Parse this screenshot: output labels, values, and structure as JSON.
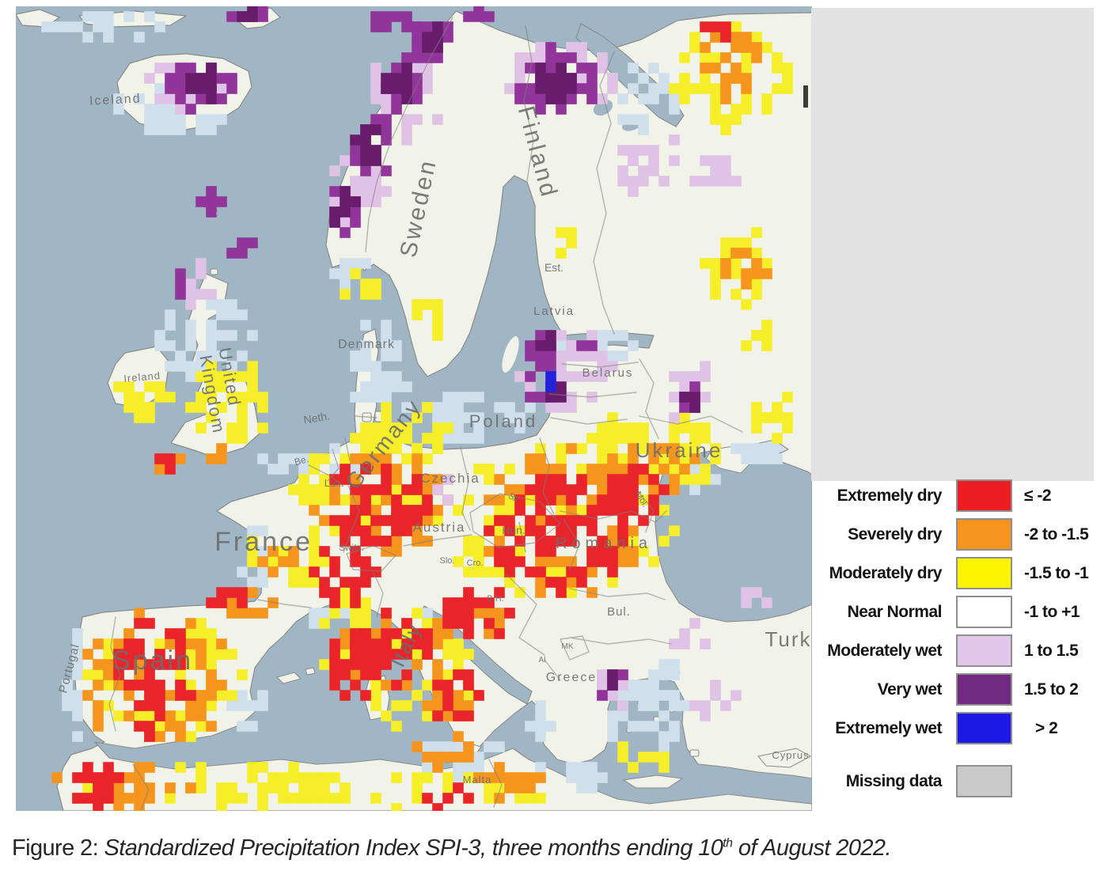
{
  "caption": {
    "prefix": "Figure 2:",
    "body": " Standardized Precipitation Index SPI-3, three months ending 10",
    "sup": "th",
    "tail": " of August 2022."
  },
  "panel": {
    "color": "#e2e2e2"
  },
  "legend": {
    "swatch_border": "#8f8f8f",
    "rows": [
      {
        "label": "Extremely dry",
        "range": "≤ -2",
        "color": "#ee1c23"
      },
      {
        "label": "Severely dry",
        "range": "-2 to -1.5",
        "color": "#f79420"
      },
      {
        "label": "Moderately dry",
        "range": "-1.5 to -1",
        "color": "#fdf402"
      },
      {
        "label": "Near Normal",
        "range": "-1 to +1",
        "color": "#ffffff"
      },
      {
        "label": "Moderately wet",
        "range": "1 to 1.5",
        "color": "#e4c6ea"
      },
      {
        "label": "Very wet",
        "range": "1.5 to 2",
        "color": "#722982"
      },
      {
        "label": "Extremely wet",
        "range": "> 2",
        "color": "#1d1ae8"
      },
      {
        "label": "Missing data",
        "range": "",
        "color": "#c9c9c9"
      }
    ]
  },
  "map": {
    "colors": {
      "sea": "#a0b6c5",
      "land": "#f1f3e9",
      "coast": "#cfdfec",
      "yellow": "#f5ee28",
      "orange": "#f6951e",
      "red": "#e9242a",
      "lavender": "#e0c2e6",
      "purple": "#92359a",
      "darkpurple": "#681d6c",
      "blue": "#2222dd",
      "border": "#7f7f7f",
      "label": "#6d6d6d"
    },
    "labels": [
      [
        "Iceland",
        126,
        123,
        16,
        -3,
        2
      ],
      [
        "Sweden",
        518,
        257,
        30,
        -78,
        3
      ],
      [
        "Finland",
        650,
        187,
        30,
        75,
        3
      ],
      [
        "Est.",
        680,
        335,
        14,
        0,
        0
      ],
      [
        "Latvia",
        680,
        390,
        15,
        0,
        2
      ],
      [
        "Belarus",
        748,
        468,
        15,
        0,
        2
      ],
      [
        "Denmark",
        443,
        432,
        16,
        0,
        1
      ],
      [
        "United",
        263,
        470,
        22,
        80,
        2
      ],
      [
        "Kingdom",
        241,
        492,
        22,
        80,
        2
      ],
      [
        "Ireland",
        160,
        473,
        13,
        -5,
        1
      ],
      [
        "Neth.",
        381,
        525,
        14,
        -10,
        0
      ],
      [
        "Be.",
        362,
        578,
        12,
        -15,
        0
      ],
      [
        "Lux.",
        402,
        607,
        13,
        0,
        0
      ],
      [
        "Germany",
        472,
        559,
        28,
        -52,
        3
      ],
      [
        "Czechia",
        549,
        602,
        17,
        0,
        2
      ],
      [
        "Poland",
        616,
        532,
        22,
        0,
        3
      ],
      [
        "Austria",
        535,
        664,
        17,
        0,
        2
      ],
      [
        "Switz.",
        424,
        688,
        12,
        0,
        0
      ],
      [
        "France",
        313,
        688,
        34,
        0,
        3
      ],
      [
        "Hun.",
        629,
        667,
        14,
        0,
        0
      ],
      [
        "Slo.",
        545,
        704,
        11,
        0,
        0
      ],
      [
        "Cro.",
        580,
        707,
        11,
        0,
        0
      ],
      [
        "B.H.",
        606,
        752,
        11,
        0,
        0
      ],
      [
        "Romania",
        743,
        685,
        20,
        0,
        6
      ],
      [
        "Mol.",
        788,
        625,
        11,
        58,
        0
      ],
      [
        "Sk.",
        628,
        625,
        11,
        36,
        0
      ],
      [
        "Bul.",
        762,
        770,
        15,
        0,
        1
      ],
      [
        "MK",
        697,
        812,
        10,
        0,
        0
      ],
      [
        "Al",
        665,
        829,
        10,
        0,
        0
      ],
      [
        "Greece",
        702,
        853,
        16,
        0,
        2
      ],
      [
        "Ukraine",
        838,
        570,
        26,
        0,
        3
      ],
      [
        "Spain",
        173,
        838,
        34,
        0,
        3
      ],
      [
        "Portugal",
        72,
        838,
        15,
        -75,
        1
      ],
      [
        "Italy",
        501,
        811,
        26,
        -65,
        2
      ],
      [
        "Malta",
        583,
        982,
        13,
        0,
        1
      ],
      [
        "Turk",
        976,
        809,
        26,
        0,
        2
      ],
      [
        "Cyprus",
        979,
        951,
        13,
        0,
        1
      ]
    ],
    "patches": [
      [
        "coast",
        210,
        150,
        60,
        18,
        26
      ],
      [
        "coast",
        110,
        25,
        80,
        14,
        20
      ],
      [
        "coast",
        235,
        420,
        60,
        62,
        40
      ],
      [
        "coast",
        370,
        578,
        70,
        16,
        26
      ],
      [
        "coast",
        455,
        450,
        42,
        52,
        34
      ],
      [
        "coast",
        570,
        522,
        92,
        28,
        48
      ],
      [
        "coast",
        740,
        428,
        60,
        12,
        16
      ],
      [
        "coast",
        300,
        700,
        24,
        40,
        16
      ],
      [
        "coast",
        78,
        860,
        14,
        70,
        18
      ],
      [
        "coast",
        400,
        768,
        40,
        14,
        12
      ],
      [
        "coast",
        530,
        775,
        25,
        14,
        9
      ],
      [
        "coast",
        795,
        895,
        48,
        48,
        38
      ],
      [
        "coast",
        560,
        950,
        55,
        22,
        20
      ],
      [
        "coast",
        855,
        590,
        35,
        25,
        16
      ],
      [
        "coast",
        930,
        568,
        30,
        14,
        10
      ],
      [
        "coast",
        420,
        332,
        35,
        14,
        10
      ],
      [
        "coast",
        790,
        110,
        50,
        40,
        22
      ],
      [
        "coast",
        828,
        843,
        20,
        9,
        7
      ],
      [
        "coast",
        700,
        975,
        50,
        16,
        12
      ],
      [
        "coast",
        300,
        890,
        25,
        25,
        10
      ],
      [
        "coast",
        665,
        900,
        16,
        25,
        9
      ],
      [
        "coast",
        162,
        128,
        40,
        25,
        12
      ],
      [
        "yellow",
        495,
        540,
        60,
        35,
        42
      ],
      [
        "yellow",
        460,
        610,
        110,
        72,
        88
      ],
      [
        "yellow",
        270,
        500,
        50,
        52,
        42
      ],
      [
        "yellow",
        150,
        495,
        42,
        30,
        26
      ],
      [
        "yellow",
        350,
        695,
        55,
        38,
        30
      ],
      [
        "yellow",
        420,
        800,
        40,
        62,
        34
      ],
      [
        "yellow",
        505,
        845,
        75,
        72,
        50
      ],
      [
        "yellow",
        690,
        655,
        138,
        103,
        112
      ],
      [
        "yellow",
        820,
        568,
        75,
        45,
        52
      ],
      [
        "yellow",
        185,
        845,
        95,
        88,
        74
      ],
      [
        "yellow",
        380,
        987,
        318,
        26,
        102
      ],
      [
        "yellow",
        905,
        85,
        75,
        68,
        60
      ],
      [
        "yellow",
        918,
        325,
        46,
        48,
        38
      ],
      [
        "yellow",
        440,
        358,
        24,
        20,
        11
      ],
      [
        "yellow",
        525,
        395,
        18,
        22,
        10
      ],
      [
        "yellow",
        940,
        420,
        28,
        13,
        8
      ],
      [
        "yellow",
        958,
        520,
        30,
        28,
        15
      ],
      [
        "yellow",
        790,
        950,
        40,
        13,
        9
      ],
      [
        "yellow",
        690,
        295,
        15,
        15,
        6
      ],
      [
        "yellow",
        755,
        540,
        25,
        18,
        10
      ],
      [
        "orange",
        462,
        628,
        92,
        62,
        50
      ],
      [
        "orange",
        695,
        655,
        118,
        93,
        70
      ],
      [
        "orange",
        800,
        585,
        55,
        35,
        28
      ],
      [
        "orange",
        190,
        848,
        80,
        83,
        46
      ],
      [
        "orange",
        112,
        858,
        22,
        60,
        20
      ],
      [
        "orange",
        480,
        812,
        65,
        52,
        33
      ],
      [
        "orange",
        555,
        880,
        35,
        45,
        21
      ],
      [
        "orange",
        905,
        72,
        45,
        45,
        26
      ],
      [
        "orange",
        288,
        757,
        38,
        18,
        13
      ],
      [
        "orange",
        330,
        698,
        30,
        16,
        10
      ],
      [
        "orange",
        190,
        575,
        22,
        12,
        8
      ],
      [
        "orange",
        255,
        560,
        12,
        8,
        4
      ],
      [
        "orange",
        140,
        985,
        85,
        28,
        36
      ],
      [
        "orange",
        620,
        985,
        55,
        22,
        17
      ],
      [
        "orange",
        920,
        330,
        26,
        22,
        12
      ],
      [
        "orange",
        575,
        780,
        45,
        30,
        17
      ],
      [
        "orange",
        545,
        945,
        45,
        15,
        11
      ],
      [
        "red",
        460,
        630,
        68,
        50,
        52
      ],
      [
        "red",
        415,
        715,
        35,
        42,
        28
      ],
      [
        "red",
        425,
        835,
        25,
        55,
        23
      ],
      [
        "red",
        478,
        812,
        52,
        42,
        40
      ],
      [
        "red",
        553,
        872,
        30,
        38,
        19
      ],
      [
        "red",
        685,
        665,
        90,
        73,
        85
      ],
      [
        "red",
        785,
        620,
        40,
        35,
        21
      ],
      [
        "red",
        585,
        768,
        45,
        30,
        23
      ],
      [
        "red",
        175,
        848,
        55,
        70,
        52
      ],
      [
        "red",
        262,
        752,
        32,
        18,
        11
      ],
      [
        "red",
        95,
        982,
        38,
        30,
        19
      ],
      [
        "red",
        545,
        995,
        30,
        16,
        8
      ],
      [
        "red",
        890,
        25,
        22,
        14,
        8
      ],
      [
        "red",
        188,
        577,
        12,
        8,
        4
      ],
      [
        "lavender",
        210,
        100,
        55,
        32,
        28
      ],
      [
        "lavender",
        490,
        120,
        45,
        55,
        28
      ],
      [
        "lavender",
        435,
        225,
        35,
        55,
        25
      ],
      [
        "lavender",
        690,
        95,
        70,
        48,
        42
      ],
      [
        "lavender",
        800,
        200,
        42,
        35,
        26
      ],
      [
        "lavender",
        878,
        210,
        32,
        25,
        15
      ],
      [
        "lavender",
        695,
        460,
        60,
        55,
        40
      ],
      [
        "lavender",
        728,
        432,
        16,
        13,
        6
      ],
      [
        "lavender",
        845,
        490,
        25,
        28,
        13
      ],
      [
        "lavender",
        755,
        860,
        32,
        25,
        15
      ],
      [
        "lavender",
        855,
        795,
        22,
        18,
        8
      ],
      [
        "lavender",
        885,
        880,
        28,
        20,
        10
      ],
      [
        "lavender",
        225,
        350,
        25,
        25,
        11
      ],
      [
        "lavender",
        862,
        470,
        25,
        15,
        8
      ],
      [
        "lavender",
        932,
        752,
        22,
        12,
        6
      ],
      [
        "lavender",
        540,
        608,
        8,
        22,
        5
      ],
      [
        "purple",
        232,
        100,
        42,
        28,
        28
      ],
      [
        "purple",
        300,
        12,
        20,
        12,
        10
      ],
      [
        "purple",
        243,
        252,
        15,
        20,
        10
      ],
      [
        "purple",
        288,
        308,
        13,
        15,
        8
      ],
      [
        "purple",
        285,
        12,
        13,
        9,
        6
      ],
      [
        "purple",
        212,
        355,
        15,
        17,
        8
      ],
      [
        "purple",
        530,
        45,
        28,
        25,
        17
      ],
      [
        "purple",
        488,
        100,
        26,
        35,
        21
      ],
      [
        "purple",
        450,
        175,
        24,
        42,
        23
      ],
      [
        "purple",
        418,
        255,
        20,
        38,
        17
      ],
      [
        "purple",
        478,
        22,
        30,
        16,
        11
      ],
      [
        "purple",
        688,
        95,
        52,
        38,
        38
      ],
      [
        "purple",
        668,
        455,
        22,
        45,
        24
      ],
      [
        "purple",
        752,
        852,
        13,
        16,
        7
      ],
      [
        "purple",
        728,
        432,
        10,
        9,
        4
      ],
      [
        "purple",
        850,
        495,
        12,
        25,
        8
      ],
      [
        "purple",
        588,
        8,
        15,
        8,
        6
      ],
      [
        "darkpurple",
        240,
        98,
        26,
        16,
        13
      ],
      [
        "darkpurple",
        528,
        42,
        16,
        14,
        8
      ],
      [
        "darkpurple",
        484,
        98,
        14,
        20,
        10
      ],
      [
        "darkpurple",
        448,
        172,
        13,
        25,
        11
      ],
      [
        "darkpurple",
        416,
        252,
        11,
        22,
        9
      ],
      [
        "darkpurple",
        682,
        98,
        28,
        20,
        15
      ],
      [
        "darkpurple",
        675,
        425,
        10,
        12,
        5
      ],
      [
        "darkpurple",
        688,
        482,
        11,
        14,
        6
      ],
      [
        "darkpurple",
        298,
        10,
        10,
        7,
        4
      ],
      [
        "darkpurple",
        750,
        855,
        7,
        9,
        3
      ],
      [
        "darkpurple",
        852,
        505,
        6,
        8,
        3
      ],
      [
        "blue",
        678,
        482,
        6,
        9,
        3
      ]
    ]
  }
}
